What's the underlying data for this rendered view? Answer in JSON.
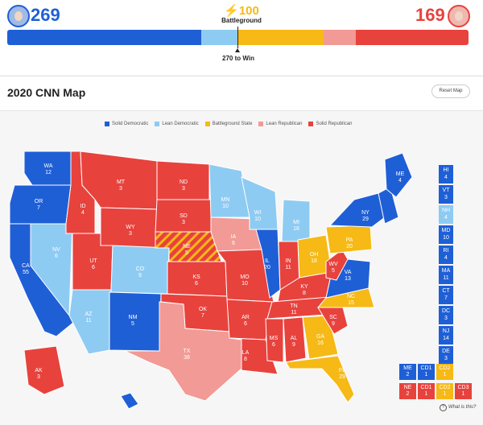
{
  "header": {
    "dem_count": "269",
    "rep_count": "169",
    "battleground_count": "⚡100",
    "battleground_label": "Battleground",
    "threshold_label": "270 to Win",
    "bar": [
      {
        "category": "Solid Democratic",
        "votes": 226,
        "color": "#1f5fd6"
      },
      {
        "category": "Lean Democratic",
        "votes": 43,
        "color": "#8ecbf2"
      },
      {
        "category": "Battleground State",
        "votes": 100,
        "color": "#f6b915"
      },
      {
        "category": "Lean Republican",
        "votes": 38,
        "color": "#f29a95"
      },
      {
        "category": "Solid Republican",
        "votes": 131,
        "color": "#e8423d"
      }
    ]
  },
  "map_title": "2020 CNN Map",
  "reset_label": "Reset Map",
  "legend": [
    {
      "label": "Solid Democratic",
      "color": "#1f5fd6"
    },
    {
      "label": "Lean Democratic",
      "color": "#8ecbf2"
    },
    {
      "label": "Battleground State",
      "color": "#f6b915"
    },
    {
      "label": "Lean Republican",
      "color": "#f29a95"
    },
    {
      "label": "Solid Republican",
      "color": "#e8423d"
    }
  ],
  "states": {
    "WA": {
      "abbr": "WA",
      "ev": "12"
    },
    "OR": {
      "abbr": "OR",
      "ev": "7"
    },
    "CA": {
      "abbr": "CA",
      "ev": "55"
    },
    "NV": {
      "abbr": "NV",
      "ev": "6"
    },
    "ID": {
      "abbr": "ID",
      "ev": "4"
    },
    "MT": {
      "abbr": "MT",
      "ev": "3"
    },
    "WY": {
      "abbr": "WY",
      "ev": "3"
    },
    "UT": {
      "abbr": "UT",
      "ev": "6"
    },
    "AZ": {
      "abbr": "AZ",
      "ev": "11"
    },
    "CO": {
      "abbr": "CO",
      "ev": "9"
    },
    "NM": {
      "abbr": "NM",
      "ev": "5"
    },
    "ND": {
      "abbr": "ND",
      "ev": "3"
    },
    "SD": {
      "abbr": "SD",
      "ev": "3"
    },
    "NE": {
      "abbr": "NE",
      "ev": "5"
    },
    "KS": {
      "abbr": "KS",
      "ev": "6"
    },
    "OK": {
      "abbr": "OK",
      "ev": "7"
    },
    "TX": {
      "abbr": "TX",
      "ev": "38"
    },
    "MN": {
      "abbr": "MN",
      "ev": "10"
    },
    "IA": {
      "abbr": "IA",
      "ev": "6"
    },
    "MO": {
      "abbr": "MO",
      "ev": "10"
    },
    "AR": {
      "abbr": "AR",
      "ev": "6"
    },
    "LA": {
      "abbr": "LA",
      "ev": "8"
    },
    "WI": {
      "abbr": "WI",
      "ev": "10"
    },
    "IL": {
      "abbr": "IL",
      "ev": "20"
    },
    "MI": {
      "abbr": "MI",
      "ev": "16"
    },
    "IN": {
      "abbr": "IN",
      "ev": "11"
    },
    "OH": {
      "abbr": "OH",
      "ev": "18"
    },
    "KY": {
      "abbr": "KY",
      "ev": "8"
    },
    "TN": {
      "abbr": "TN",
      "ev": "11"
    },
    "MS": {
      "abbr": "MS",
      "ev": "6"
    },
    "AL": {
      "abbr": "AL",
      "ev": "9"
    },
    "GA": {
      "abbr": "GA",
      "ev": "16"
    },
    "FL": {
      "abbr": "FL",
      "ev": "29"
    },
    "SC": {
      "abbr": "SC",
      "ev": "9"
    },
    "NC": {
      "abbr": "NC",
      "ev": "15"
    },
    "VA": {
      "abbr": "VA",
      "ev": "13"
    },
    "WV": {
      "abbr": "WV",
      "ev": "5"
    },
    "PA": {
      "abbr": "PA",
      "ev": "20"
    },
    "NY": {
      "abbr": "NY",
      "ev": "29"
    },
    "ME": {
      "abbr": "ME",
      "ev": "4"
    },
    "AK": {
      "abbr": "AK",
      "ev": "3"
    }
  },
  "small_states": [
    {
      "abbr": "HI",
      "ev": "4",
      "color": "#1f5fd6"
    },
    {
      "abbr": "VT",
      "ev": "3",
      "color": "#1f5fd6"
    },
    {
      "abbr": "NH",
      "ev": "4",
      "color": "#8ecbf2"
    },
    {
      "abbr": "MD",
      "ev": "10",
      "color": "#1f5fd6"
    },
    {
      "abbr": "RI",
      "ev": "4",
      "color": "#1f5fd6"
    },
    {
      "abbr": "MA",
      "ev": "11",
      "color": "#1f5fd6"
    },
    {
      "abbr": "CT",
      "ev": "7",
      "color": "#1f5fd6"
    },
    {
      "abbr": "DC",
      "ev": "3",
      "color": "#1f5fd6"
    },
    {
      "abbr": "NJ",
      "ev": "14",
      "color": "#1f5fd6"
    },
    {
      "abbr": "DE",
      "ev": "3",
      "color": "#1f5fd6"
    }
  ],
  "districts": {
    "me_at_large": {
      "abbr": "ME",
      "ev": "2",
      "color": "#1f5fd6"
    },
    "me_cd1": {
      "abbr": "CD1",
      "ev": "1",
      "color": "#1f5fd6"
    },
    "me_cd2": {
      "abbr": "CD2",
      "ev": "1",
      "color": "#f6b915"
    },
    "ne_at_large": {
      "abbr": "NE",
      "ev": "2",
      "color": "#e8423d"
    },
    "ne_cd1": {
      "abbr": "CD1",
      "ev": "1",
      "color": "#e8423d"
    },
    "ne_cd2": {
      "abbr": "CD2",
      "ev": "1",
      "color": "#f6b915"
    },
    "ne_cd3": {
      "abbr": "CD3",
      "ev": "1",
      "color": "#e8423d"
    }
  },
  "what_label": "What is this?"
}
